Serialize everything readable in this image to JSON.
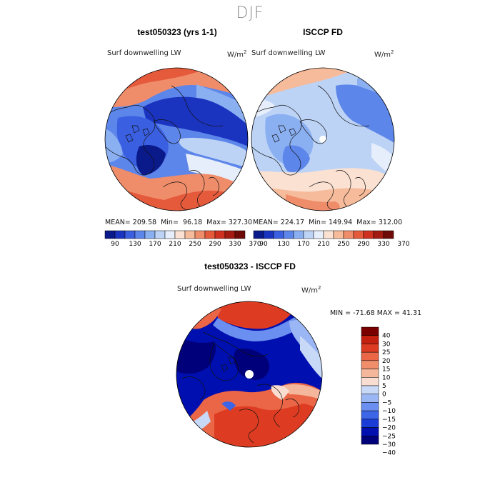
{
  "figure": {
    "season": "DJF",
    "colors": {
      "abs_palette": [
        "#0a1a8a",
        "#1b34c0",
        "#3a5fe0",
        "#5d86ea",
        "#8bb0f2",
        "#bcd3f6",
        "#e6eefb",
        "#fbe1d2",
        "#f6bb9b",
        "#ef8d6b",
        "#e65a3c",
        "#cf3120",
        "#a21a10",
        "#6e0b06"
      ],
      "diff_palette": [
        "#00007a",
        "#0010b0",
        "#1a3dd8",
        "#3c65e8",
        "#6a8ff0",
        "#9bb6f4",
        "#c8d9f8",
        "#f8ddd0",
        "#f4b79c",
        "#f08e6c",
        "#ea6646",
        "#de3c22",
        "#c4200f",
        "#7a0000"
      ]
    },
    "panel1": {
      "title": "test050323 (yrs 1-1)",
      "variable": "Surf downwelling LW",
      "units": "W/m",
      "units_exp": "2",
      "mean_label": "MEAN=",
      "mean": "209.58",
      "min_label": "Min=",
      "min": "96.18",
      "max_label": "Max=",
      "max": "327.30"
    },
    "panel2": {
      "title": "ISCCP FD",
      "variable": "Surf downwelling LW",
      "units": "W/m",
      "units_exp": "2",
      "mean_label": "MEAN=",
      "mean": "224.17",
      "min_label": "Min=",
      "min": "149.94",
      "max_label": "Max=",
      "max": "312.00"
    },
    "panel3": {
      "title": "test050323 - ISCCP FD",
      "variable": "Surf downwelling LW",
      "units": "W/m",
      "units_exp": "2",
      "minmax_text": "MIN = -71.68 MAX =  41.31"
    }
  },
  "chart_data": [
    {
      "type": "heatmap",
      "projection": "north polar stereographic",
      "title": "test050323 (yrs 1-1)",
      "variable": "Surf downwelling LW",
      "units": "W/m2",
      "stats": {
        "mean": 209.58,
        "min": 96.18,
        "max": 327.3
      },
      "colorbar_ticks": [
        "90",
        "130",
        "170",
        "210",
        "250",
        "290",
        "330",
        "370"
      ]
    },
    {
      "type": "heatmap",
      "projection": "north polar stereographic",
      "title": "ISCCP FD",
      "variable": "Surf downwelling LW",
      "units": "W/m2",
      "stats": {
        "mean": 224.17,
        "min": 149.94,
        "max": 312.0
      },
      "colorbar_ticks": [
        "90",
        "130",
        "170",
        "210",
        "250",
        "290",
        "330",
        "370"
      ]
    },
    {
      "type": "heatmap",
      "projection": "north polar stereographic",
      "title": "test050323 - ISCCP FD",
      "variable": "Surf downwelling LW",
      "units": "W/m2",
      "stats": {
        "min": -71.68,
        "max": 41.31
      },
      "colorbar_ticks": [
        "40",
        "30",
        "25",
        "20",
        "15",
        "10",
        "5",
        "0",
        "−5",
        "−10",
        "−15",
        "−20",
        "−25",
        "−30",
        "−40"
      ]
    }
  ]
}
